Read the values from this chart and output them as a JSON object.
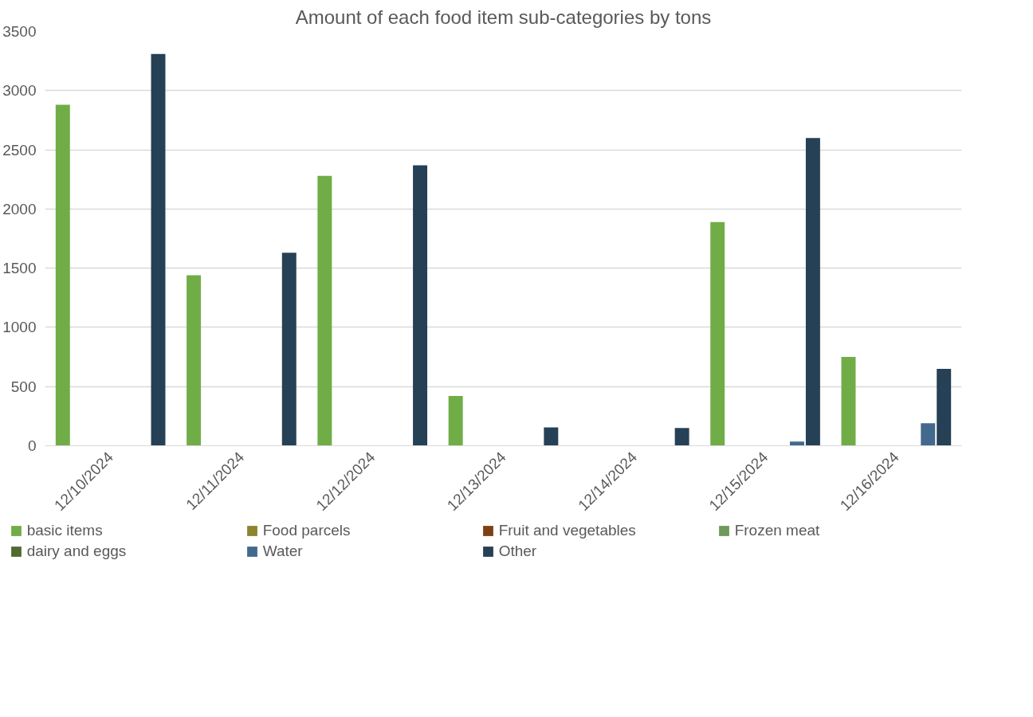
{
  "chart_data": {
    "type": "bar",
    "title": "Amount of each food item sub-categories by tons",
    "categories": [
      "12/10/2024",
      "12/11/2024",
      "12/12/2024",
      "12/13/2024",
      "12/14/2024",
      "12/15/2024",
      "12/16/2024"
    ],
    "series": [
      {
        "name": "basic items",
        "color": "#70ad47",
        "values": [
          2880,
          1440,
          2280,
          420,
          0,
          1890,
          750
        ]
      },
      {
        "name": "Food parcels",
        "color": "#8c8431",
        "values": [
          0,
          0,
          0,
          0,
          0,
          0,
          0
        ]
      },
      {
        "name": "Fruit and vegetables",
        "color": "#7f3f14",
        "values": [
          0,
          0,
          0,
          0,
          0,
          0,
          0
        ]
      },
      {
        "name": "Frozen meat",
        "color": "#6f9a5b",
        "values": [
          0,
          0,
          0,
          0,
          0,
          0,
          0
        ]
      },
      {
        "name": "dairy and eggs",
        "color": "#4e6b30",
        "values": [
          0,
          0,
          0,
          0,
          0,
          0,
          0
        ]
      },
      {
        "name": "Water",
        "color": "#43698e",
        "values": [
          0,
          0,
          0,
          0,
          0,
          35,
          190
        ]
      },
      {
        "name": "Other",
        "color": "#264055",
        "values": [
          3310,
          1630,
          2370,
          155,
          150,
          2600,
          650
        ]
      }
    ],
    "ylim": [
      0,
      3500
    ],
    "yticks": [
      0,
      500,
      1000,
      1500,
      2000,
      2500,
      3000,
      3500
    ],
    "grid": "y",
    "legend": "bottom"
  }
}
